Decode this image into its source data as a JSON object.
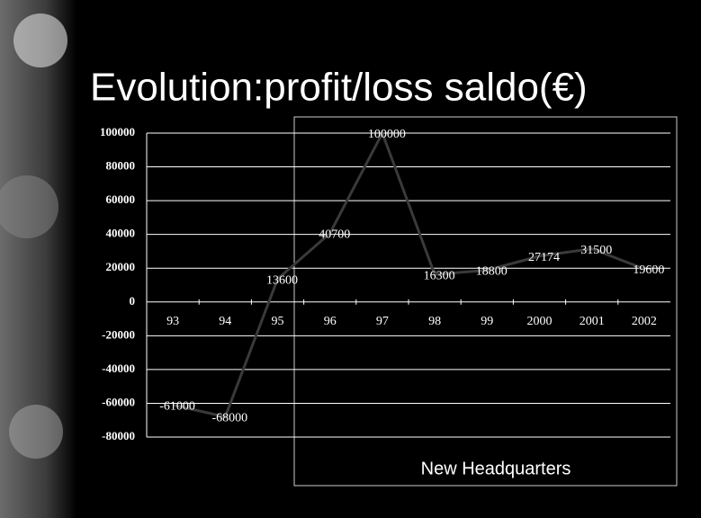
{
  "chart_data": {
    "type": "line",
    "title": "Evolution:profit/loss saldo(€)",
    "annotation": "New Headquarters",
    "categories": [
      "93",
      "94",
      "95",
      "96",
      "97",
      "98",
      "99",
      "2000",
      "2001",
      "2002"
    ],
    "values": [
      -61000,
      -68000,
      13600,
      40700,
      100000,
      16300,
      18800,
      27174,
      31500,
      19600
    ],
    "color": "#3a3a3a",
    "ylim": [
      -80000,
      100000
    ],
    "yticks": [
      -80000,
      -60000,
      -40000,
      -20000,
      0,
      20000,
      40000,
      60000,
      80000,
      100000
    ],
    "grid": true
  }
}
